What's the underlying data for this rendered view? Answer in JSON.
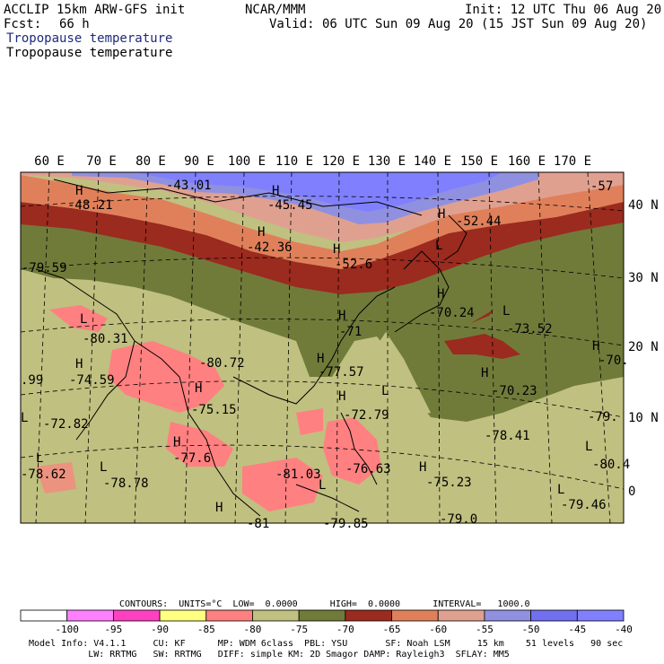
{
  "header": {
    "model": "ACCLIP 15km ARW-GFS init",
    "center": "NCAR/MMM",
    "init": "Init: 12 UTC Thu 06 Aug 20",
    "fcst_label": "Fcst:",
    "fcst_value": "66 h",
    "valid": "Valid: 06 UTC Sun 09 Aug 20 (15 JST Sun 09 Aug 20)",
    "subtitle_1": "Tropopause temperature",
    "subtitle_2": "Tropopause temperature"
  },
  "map": {
    "lon_labels": [
      "60 E",
      "70 E",
      "80 E",
      "90 E",
      "100 E",
      "110 E",
      "120 E",
      "130 E",
      "140 E",
      "150 E",
      "160 E",
      "170 E"
    ],
    "lat_labels": [
      "40 N",
      "30 N",
      "20 N",
      "10 N",
      "0"
    ],
    "field_values": [
      {
        "text": "-43.01"
      },
      {
        "text": "-45.45"
      },
      {
        "text": "-48.21"
      },
      {
        "text": "-52.44"
      },
      {
        "text": "-57"
      },
      {
        "text": "-42.36"
      },
      {
        "text": "-52.6"
      },
      {
        "text": "-79.59"
      },
      {
        "text": "-70.24"
      },
      {
        "text": "-73.52"
      },
      {
        "text": "-80.31"
      },
      {
        "text": "-80.72"
      },
      {
        "text": "-71"
      },
      {
        "text": "-77.57"
      },
      {
        "text": "-74.59"
      },
      {
        "text": ".99"
      },
      {
        "text": "-70.23"
      },
      {
        "text": "-70."
      },
      {
        "text": "-75.15"
      },
      {
        "text": "-72.79"
      },
      {
        "text": "-72.82"
      },
      {
        "text": "-79."
      },
      {
        "text": "-78.41"
      },
      {
        "text": "-77.6"
      },
      {
        "text": "-80.4"
      },
      {
        "text": "-78.62"
      },
      {
        "text": "-78.78"
      },
      {
        "text": "-81.03"
      },
      {
        "text": "-76.63"
      },
      {
        "text": "-75.23"
      },
      {
        "text": "-79.46"
      },
      {
        "text": "-81"
      },
      {
        "text": "-79.85"
      },
      {
        "text": "-79.0"
      }
    ],
    "extrema_marks": [
      "H",
      "H",
      "H",
      "H",
      "H",
      "H",
      "H",
      "H",
      "H",
      "H",
      "H",
      "H",
      "H",
      "H",
      "H",
      "H",
      "L",
      "L",
      "L",
      "L",
      "L",
      "L",
      "L",
      "L",
      "L",
      "L"
    ]
  },
  "legend": {
    "contours_line": "CONTOURS:  UNITS=°C  LOW=  0.0000      HIGH=  0.0000      INTERVAL=   1000.0",
    "ticks": [
      "-100",
      "-95",
      "-90",
      "-85",
      "-80",
      "-75",
      "-70",
      "-65",
      "-60",
      "-55",
      "-50",
      "-45",
      "-40",
      "°C"
    ],
    "colors": [
      "#ffffff",
      "#ff80ff",
      "#ff40c0",
      "#ffff80",
      "#ff8080",
      "#c0c080",
      "#707b3a",
      "#9b2a1f",
      "#e0805a",
      "#e0a090",
      "#9090e0",
      "#7070f0",
      "#8080ff"
    ]
  },
  "footer": {
    "line1": "Model Info: V4.1.1     CU: KF      MP: WDM 6class  PBL: YSU       SF: Noah LSM     15 km    51 levels   90 sec",
    "line2": "           LW: RRTMG   SW: RRTMG   DIFF: simple KM: 2D Smagor DAMP: Rayleigh3  SFLAY: MM5"
  }
}
